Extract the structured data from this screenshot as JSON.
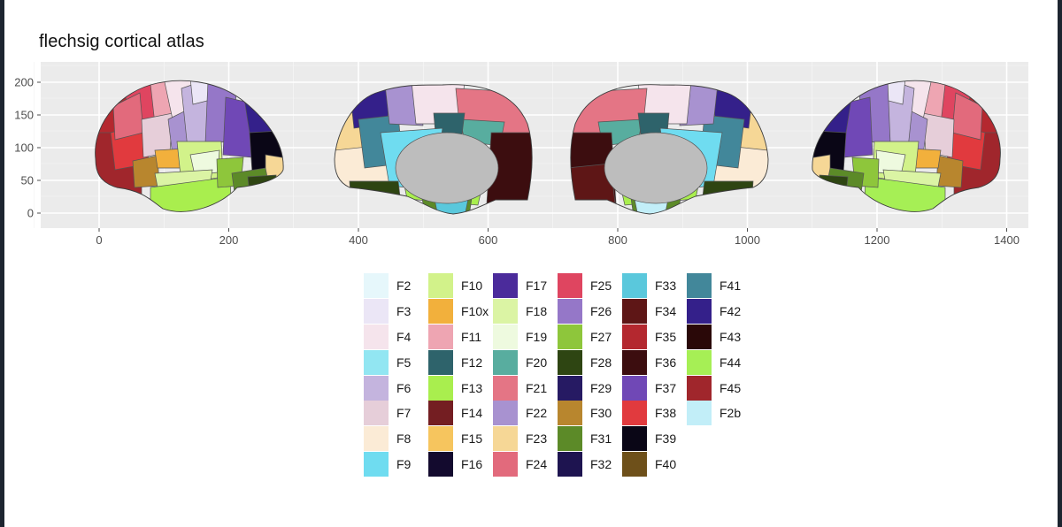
{
  "chart_data": {
    "type": "other",
    "title": "flechsig cortical atlas",
    "xlabel": "",
    "ylabel": "",
    "xlim": [
      -90,
      1480
    ],
    "ylim": [
      -25,
      235
    ],
    "x_ticks": [
      "0",
      "200",
      "400",
      "600",
      "800",
      "1000",
      "1200",
      "1400"
    ],
    "y_ticks": [
      "0",
      "50",
      "100",
      "150",
      "200"
    ],
    "grid": true,
    "panel_background": "#ebebeb",
    "legend_position": "bottom",
    "views": [
      "lateral-left",
      "medial-left",
      "medial-right",
      "lateral-right"
    ],
    "legend": [
      {
        "label": "F2",
        "color": "#e6f7fb"
      },
      {
        "label": "F3",
        "color": "#ebe6f6"
      },
      {
        "label": "F4",
        "color": "#f5e4ec"
      },
      {
        "label": "F5",
        "color": "#92e6f2"
      },
      {
        "label": "F6",
        "color": "#c4b4de"
      },
      {
        "label": "F7",
        "color": "#e6ced9"
      },
      {
        "label": "F8",
        "color": "#fbebd6"
      },
      {
        "label": "F9",
        "color": "#6fdcf0"
      },
      {
        "label": "F10",
        "color": "#d2f28a"
      },
      {
        "label": "F10x",
        "color": "#f2b03c"
      },
      {
        "label": "F11",
        "color": "#eea5b2"
      },
      {
        "label": "F12",
        "color": "#2e636b"
      },
      {
        "label": "F13",
        "color": "#a9ee4e"
      },
      {
        "label": "F14",
        "color": "#741e22"
      },
      {
        "label": "F15",
        "color": "#f6c55e"
      },
      {
        "label": "F16",
        "color": "#130a2e"
      },
      {
        "label": "F17",
        "color": "#4b2b9b"
      },
      {
        "label": "F18",
        "color": "#dbf4a4"
      },
      {
        "label": "F19",
        "color": "#eefadf"
      },
      {
        "label": "F20",
        "color": "#58ad9f"
      },
      {
        "label": "F21",
        "color": "#e47585"
      },
      {
        "label": "F22",
        "color": "#a892d0"
      },
      {
        "label": "F23",
        "color": "#f6d796"
      },
      {
        "label": "F24",
        "color": "#e26a7c"
      },
      {
        "label": "F25",
        "color": "#df4560"
      },
      {
        "label": "F26",
        "color": "#9577c8"
      },
      {
        "label": "F27",
        "color": "#8ec63b"
      },
      {
        "label": "F28",
        "color": "#2e4512"
      },
      {
        "label": "F29",
        "color": "#261a63"
      },
      {
        "label": "F30",
        "color": "#b8862e"
      },
      {
        "label": "F31",
        "color": "#5c8a28"
      },
      {
        "label": "F32",
        "color": "#1e1450"
      },
      {
        "label": "F33",
        "color": "#5ac8dc"
      },
      {
        "label": "F34",
        "color": "#5e1616"
      },
      {
        "label": "F35",
        "color": "#b4282f"
      },
      {
        "label": "F36",
        "color": "#3c0d0f"
      },
      {
        "label": "F37",
        "color": "#7048b6"
      },
      {
        "label": "F38",
        "color": "#e13a3e"
      },
      {
        "label": "F39",
        "color": "#0a0616"
      },
      {
        "label": "F40",
        "color": "#6e501a"
      },
      {
        "label": "F41",
        "color": "#42879a"
      },
      {
        "label": "F42",
        "color": "#34208a"
      },
      {
        "label": "F43",
        "color": "#2a0808"
      },
      {
        "label": "F44",
        "color": "#a6ef55"
      },
      {
        "label": "F45",
        "color": "#a0262c"
      },
      {
        "label": "F2b",
        "color": "#c2eef8"
      }
    ]
  }
}
